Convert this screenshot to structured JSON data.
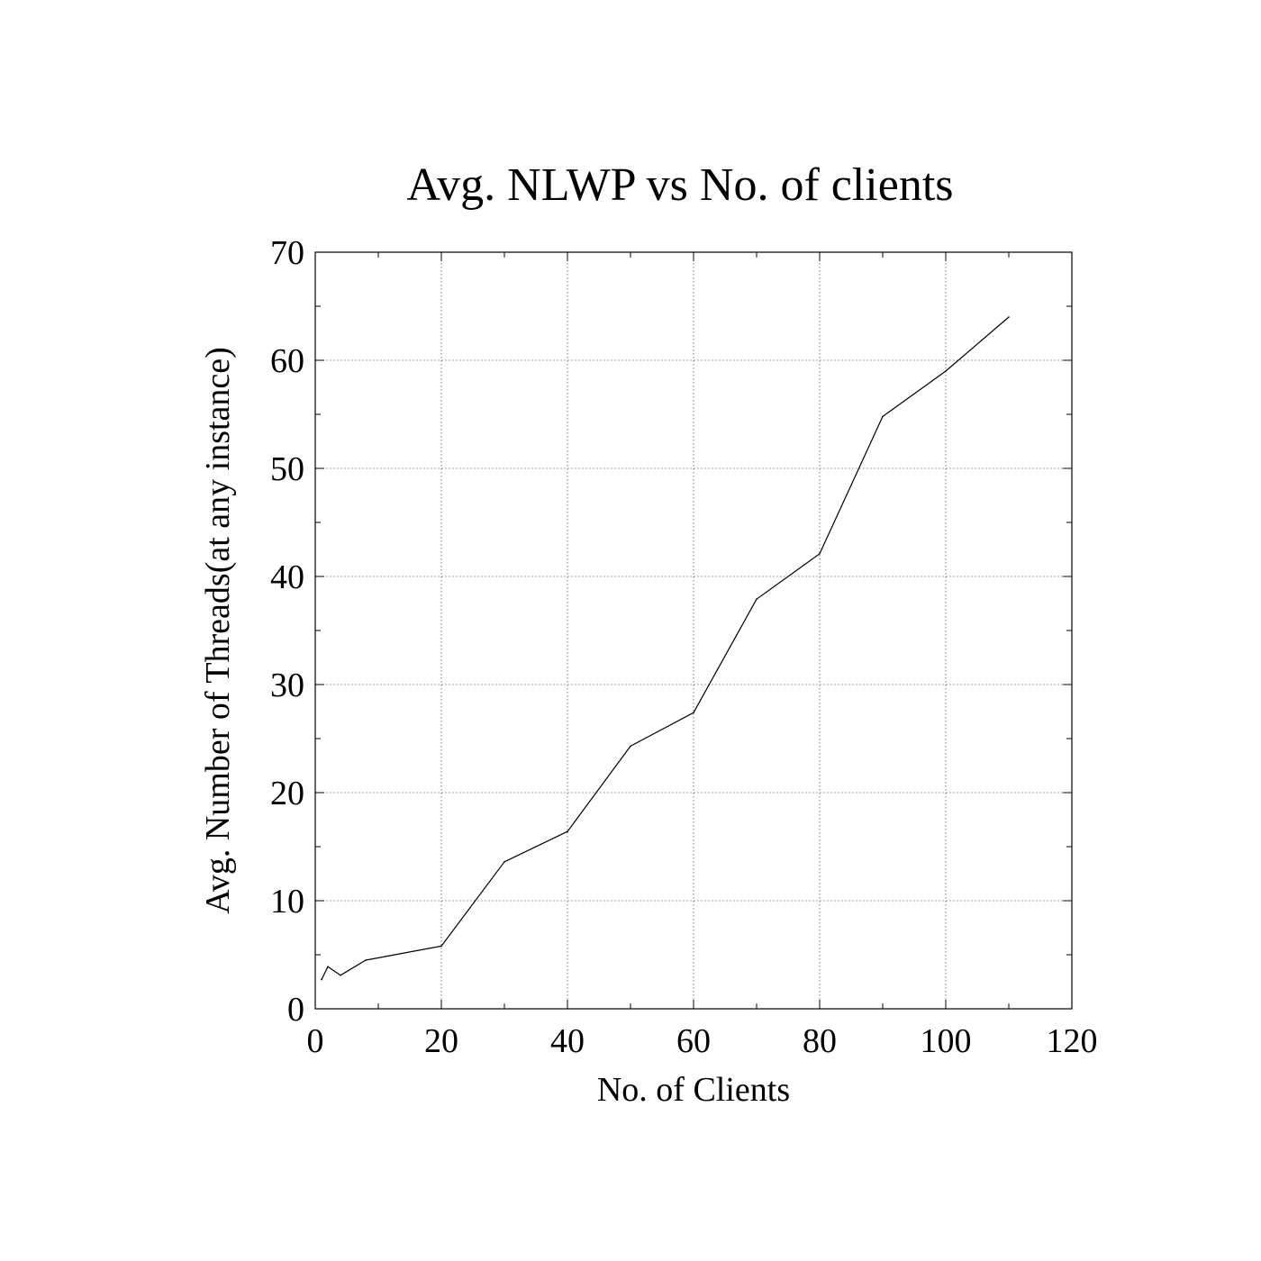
{
  "chart_data": {
    "type": "line",
    "title": "Avg. NLWP vs No. of clients",
    "xlabel": "No. of Clients",
    "ylabel": "Avg. Number of Threads(at any instance)",
    "xlim": [
      0,
      120
    ],
    "ylim": [
      0,
      70
    ],
    "x_ticks": [
      "0",
      "20",
      "40",
      "60",
      "80",
      "100",
      "120"
    ],
    "y_ticks": [
      "0",
      "10",
      "20",
      "30",
      "40",
      "50",
      "60",
      "70"
    ],
    "grid": true,
    "legend": "none",
    "series": [
      {
        "color": "#000000",
        "x": [
          1,
          2,
          4,
          8,
          20,
          30,
          40,
          50,
          60,
          70,
          80,
          90,
          100,
          110
        ],
        "y": [
          2.7,
          3.9,
          3.1,
          4.5,
          5.8,
          13.6,
          16.4,
          24.3,
          27.4,
          37.9,
          42.1,
          54.8,
          59.0,
          64.0
        ]
      }
    ]
  }
}
